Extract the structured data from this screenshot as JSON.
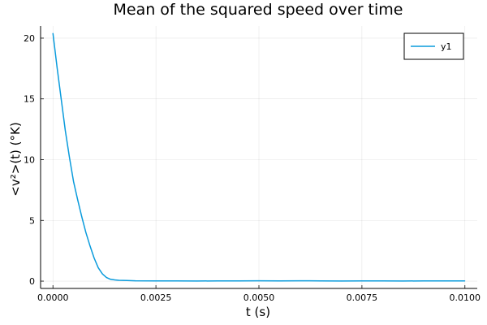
{
  "chart_data": {
    "type": "line",
    "title": "Mean of the squared speed over time",
    "xlabel": "t (s)",
    "ylabel": "<v²>(t) (°K)",
    "xlim": [
      -0.0003,
      0.0103
    ],
    "ylim": [
      -0.6,
      21.0
    ],
    "x_ticks": [
      0.0,
      0.0025,
      0.005,
      0.0075,
      0.01
    ],
    "x_tick_labels": [
      "0.0000",
      "0.0025",
      "0.0050",
      "0.0075",
      "0.0100"
    ],
    "y_ticks": [
      0,
      5,
      10,
      15,
      20
    ],
    "y_tick_labels": [
      "0",
      "5",
      "10",
      "15",
      "20"
    ],
    "grid": true,
    "legend_position": "top-right",
    "colors": {
      "series": "#0a9bdc"
    },
    "series": [
      {
        "name": "y1",
        "x": [
          0.0,
          0.0001,
          0.0002,
          0.0003,
          0.0004,
          0.0005,
          0.0006,
          0.0007,
          0.0008,
          0.0009,
          0.001,
          0.0011,
          0.0012,
          0.0013,
          0.0014,
          0.0015,
          0.0016,
          0.0018,
          0.002,
          0.0025,
          0.003,
          0.0035,
          0.004,
          0.0045,
          0.005,
          0.0055,
          0.006,
          0.0065,
          0.007,
          0.0075,
          0.008,
          0.0085,
          0.009,
          0.0095,
          0.01
        ],
        "values": [
          20.4,
          17.6,
          15.0,
          12.4,
          10.2,
          8.2,
          6.7,
          5.3,
          4.0,
          2.9,
          1.9,
          1.1,
          0.6,
          0.3,
          0.15,
          0.1,
          0.07,
          0.05,
          0.03,
          0.02,
          0.02,
          0.01,
          0.02,
          0.02,
          0.03,
          0.02,
          0.03,
          0.02,
          0.01,
          0.02,
          0.02,
          0.01,
          0.02,
          0.02,
          0.02
        ]
      }
    ]
  }
}
